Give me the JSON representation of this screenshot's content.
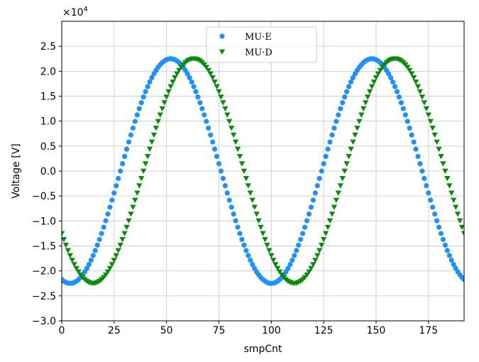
{
  "chart_data": {
    "type": "scatter",
    "xlabel": "smpCnt",
    "ylabel": "Voltage [V]",
    "y_multiplier_label": "×10",
    "y_multiplier_exponent": "4",
    "xlim": [
      0,
      192
    ],
    "ylim": [
      -30000,
      30000
    ],
    "x_ticks": [
      0,
      25,
      50,
      75,
      100,
      125,
      150,
      175
    ],
    "x_tick_labels": [
      "0",
      "25",
      "50",
      "75",
      "100",
      "125",
      "150",
      "175"
    ],
    "y_ticks": [
      -30000,
      -25000,
      -20000,
      -15000,
      -10000,
      -5000,
      0,
      5000,
      10000,
      15000,
      20000,
      25000
    ],
    "y_tick_labels": [
      "−3.0",
      "−2.5",
      "−2.0",
      "−1.5",
      "−1.0",
      "−0.5",
      "0.0",
      "0.5",
      "1.0",
      "1.5",
      "2.0",
      "2.5"
    ],
    "grid": true,
    "legend_placement": "top-center",
    "series": [
      {
        "name": "MU·E",
        "marker": "circle",
        "color": "#1e90ff",
        "amplitude": 22500,
        "period": 96,
        "phase_peak_x": 52,
        "x_start": 0,
        "x_end": 192,
        "x_step": 1
      },
      {
        "name": "MU·D",
        "marker": "triangle-down",
        "color": "#0a8a0a",
        "amplitude": 22500,
        "period": 96,
        "phase_peak_x": 63,
        "x_start": 0,
        "x_end": 192,
        "x_step": 1
      }
    ]
  }
}
